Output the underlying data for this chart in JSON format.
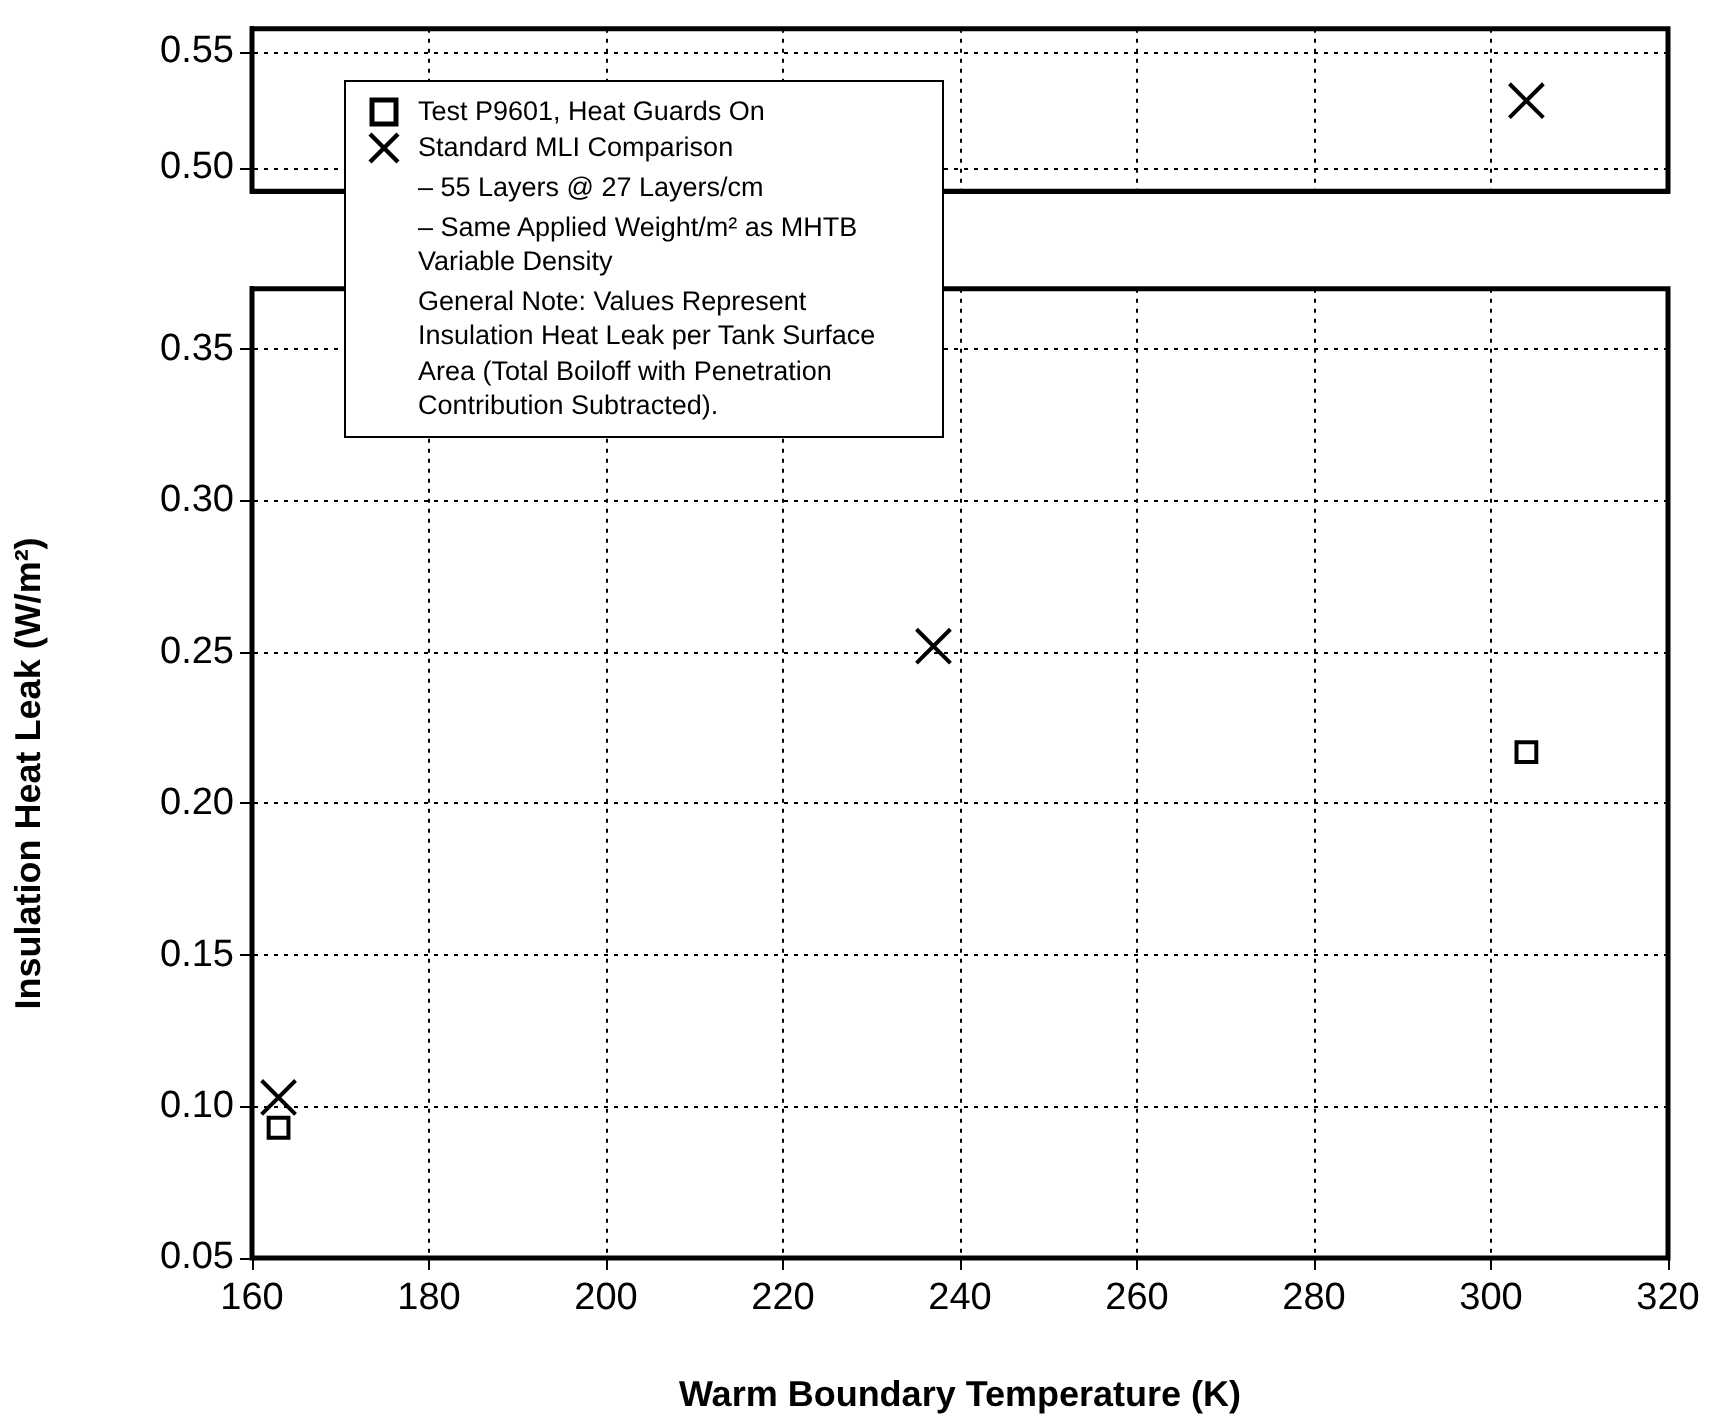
{
  "chart_data": [
    {
      "type": "scatter",
      "xlim": [
        160,
        320
      ],
      "xticks": [
        160,
        180,
        200,
        220,
        240,
        260,
        280,
        300,
        320
      ],
      "ylim": [
        0.49,
        0.56
      ],
      "yticks": [
        {
          "value": 0.5,
          "label": "0.50"
        },
        0.55
      ],
      "grid": true,
      "tick_labels": "y",
      "series": [
        {
          "color": "#000000",
          "marker": "cross",
          "x": [
            304
          ],
          "values": [
            0.529
          ]
        }
      ]
    },
    {
      "type": "scatter",
      "xlabel": "Warm Boundary Temperature (K)",
      "ylabel": "Insulation Heat Leak (W/m²)",
      "xlim": [
        160,
        320
      ],
      "xticks": [
        160,
        180,
        200,
        220,
        240,
        260,
        280,
        300,
        320
      ],
      "ylim": [
        0.05,
        0.37
      ],
      "yticks": [
        0.05,
        {
          "value": 0.1,
          "label": "0.10"
        },
        0.15,
        {
          "value": 0.2,
          "label": "0.20"
        },
        0.25,
        {
          "value": 0.3,
          "label": "0.30"
        },
        0.35
      ],
      "grid": true,
      "legend": "top left",
      "annotations": [
        "– 55 Layers @ 27 Layers/cm",
        "– Same Applied Weight/m² as MHTB Variable Density",
        "General Note:  Values Represent Insulation Heat Leak per Tank Surface Area (Total Boiloff with Penetration Contribution Subtracted)."
      ],
      "series": [
        {
          "name": "Test P9601, Heat Guards On",
          "color": "#000000",
          "marker": "square",
          "x": [
            163,
            304
          ],
          "values": [
            0.093,
            0.217
          ]
        },
        {
          "name": "Standard MLI Comparison",
          "color": "#000000",
          "marker": "cross",
          "x": [
            163,
            237
          ],
          "values": [
            0.103,
            0.252
          ]
        }
      ]
    }
  ]
}
